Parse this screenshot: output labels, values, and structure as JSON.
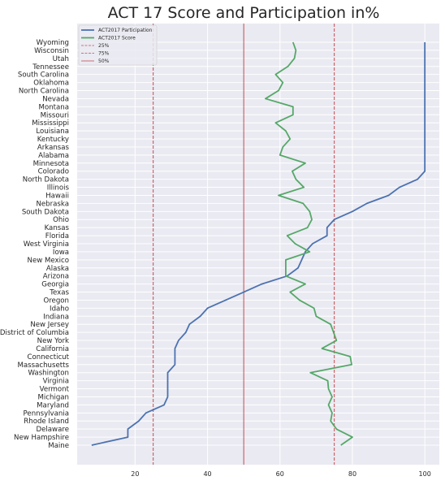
{
  "chart_data": {
    "type": "line",
    "orientation": "horizontal-value-axis",
    "title": "ACT 17 Score and Participation in%",
    "xlabel": "",
    "ylabel": "",
    "xlim": [
      4,
      104
    ],
    "xticks": [
      20,
      40,
      60,
      80,
      100
    ],
    "grid": true,
    "legend_position": "top-left",
    "states": [
      "Wyoming",
      "Wisconsin",
      "Utah",
      "Tennessee",
      "South Carolina",
      "Oklahoma",
      "North Carolina",
      "Nevada",
      "Montana",
      "Missouri",
      "Mississippi",
      "Louisiana",
      "Kentucky",
      "Arkansas",
      "Alabama",
      "Minnesota",
      "Colorado",
      "North Dakota",
      "Illinois",
      "Hawaii",
      "Nebraska",
      "South Dakota",
      "Ohio",
      "Kansas",
      "Florida",
      "West Virginia",
      "Iowa",
      "New Mexico",
      "Alaska",
      "Arizona",
      "Georgia",
      "Texas",
      "Oregon",
      "Idaho",
      "Indiana",
      "New Jersey",
      "District of Columbia",
      "New York",
      "California",
      "Connecticut",
      "Massachusetts",
      "Washington",
      "Virginia",
      "Vermont",
      "Michigan",
      "Maryland",
      "Pennsylvania",
      "Rhode Island",
      "Delaware",
      "New Hampshire",
      "Maine"
    ],
    "series": [
      {
        "name": "ACT2017 Participation",
        "color": "#4c72b0",
        "values": [
          100,
          100,
          100,
          100,
          100,
          100,
          100,
          100,
          100,
          100,
          100,
          100,
          100,
          100,
          100,
          100,
          100,
          98,
          93,
          90,
          84,
          80,
          75,
          73,
          73,
          69,
          67,
          66,
          65,
          62,
          55,
          50,
          45,
          40,
          38,
          35,
          34,
          32,
          31,
          31,
          31,
          29,
          29,
          29,
          29,
          28,
          23,
          21,
          18,
          18,
          8
        ]
      },
      {
        "name": "ACT2017 Score",
        "color": "#55a868",
        "values": [
          63.6,
          64.4,
          64.0,
          62.2,
          58.8,
          60.8,
          59.6,
          56.0,
          63.6,
          63.6,
          58.8,
          61.6,
          62.8,
          60.8,
          60.0,
          67.0,
          63.4,
          64.4,
          66.6,
          59.6,
          66.4,
          68.2,
          68.8,
          67.6,
          62.0,
          64.2,
          68.2,
          61.6,
          61.6,
          61.6,
          67.0,
          62.8,
          65.4,
          69.4,
          70.0,
          74.0,
          74.8,
          75.6,
          71.6,
          79.4,
          79.8,
          68.4,
          73.2,
          73.4,
          74.4,
          73.4,
          74.4,
          74.0,
          75.6,
          80.0,
          76.8
        ]
      }
    ],
    "reference_lines": [
      {
        "name": "25%",
        "value": 25,
        "style": "dashed",
        "color": "#c44e52"
      },
      {
        "name": "75%",
        "value": 75,
        "style": "dashed",
        "color": "#c44e52"
      },
      {
        "name": "50%",
        "value": 50,
        "style": "solid",
        "color": "#c44e52"
      }
    ],
    "legend": [
      "ACT2017 Participation",
      "ACT2017 Score",
      "25%",
      "75%",
      "50%"
    ]
  }
}
